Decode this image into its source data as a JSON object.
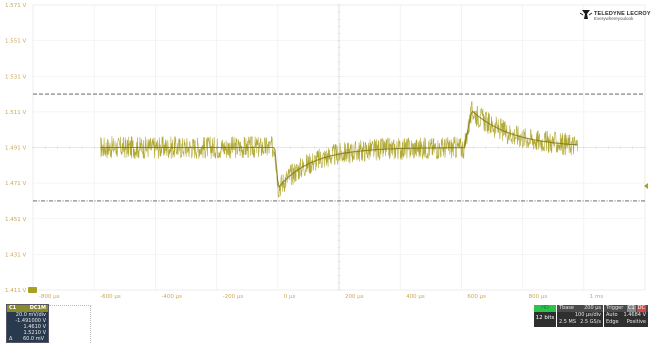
{
  "logo": {
    "name": "TELEDYNE LECROY",
    "tagline": "Everywhereyoulook"
  },
  "grid": {
    "y_labels": [
      "1.571 V",
      "1.551 V",
      "1.531 V",
      "1.511 V",
      "1.491 V",
      "1.471 V",
      "1.451 V",
      "1.431 V",
      "1.411 V"
    ],
    "x_labels": [
      "-800 µs",
      "-600 µs",
      "-400 µs",
      "-200 µs",
      "0 µs",
      "200 µs",
      "400 µs",
      "600 µs",
      "800 µs",
      "1 ms"
    ]
  },
  "cursors": {
    "upper_v": 1.521,
    "lower_v": 1.461
  },
  "trace": {
    "color": "#a8a020",
    "baseline_v": 1.491,
    "step_down_at_us": -210,
    "step_down_min_v": 1.466,
    "step_up_at_us": 410,
    "step_up_peak_v": 1.516,
    "noise_pp_v": 0.008
  },
  "channel": {
    "name": "C1",
    "coupling": "DC1M",
    "scale": "20.0 mV/div",
    "offset": "-1.491000 V",
    "cursor1": "1.4610 V",
    "cursor2": "1.5210 V",
    "delta_label": "Δ",
    "delta": "60.0 mV"
  },
  "bits": {
    "label": "HD",
    "value": "12 bits"
  },
  "timebase": {
    "title": "Tbase",
    "delay": "200 µs",
    "scale": "100 µs/div",
    "points": "2.5 MS",
    "rate": "2.5 GS/s"
  },
  "trigger": {
    "title": "Trigger",
    "ch": "C1",
    "mode": "DC",
    "type": "Auto",
    "level": "1.4684 V",
    "source": "Edge",
    "slope": "Positive"
  }
}
